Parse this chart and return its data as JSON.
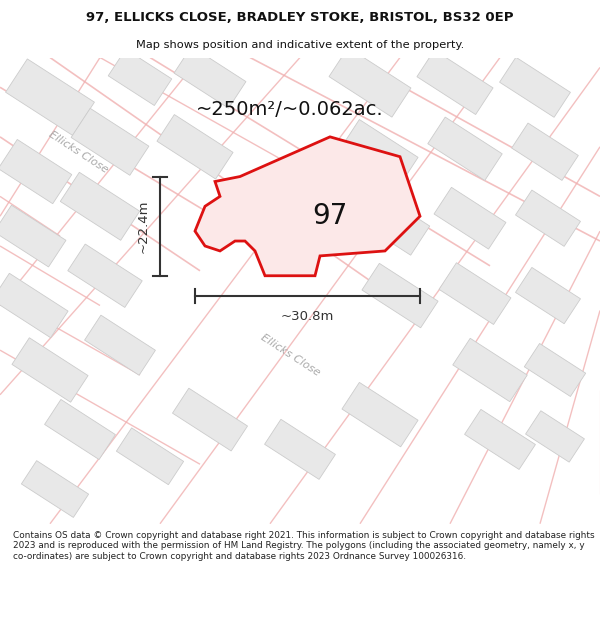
{
  "title_line1": "97, ELLICKS CLOSE, BRADLEY STOKE, BRISTOL, BS32 0EP",
  "title_line2": "Map shows position and indicative extent of the property.",
  "area_text": "~250m²/~0.062ac.",
  "label_97": "97",
  "dim_width": "~30.8m",
  "dim_height": "~22.4m",
  "road_label_topleft": "Ellicks Close",
  "road_label_bottom": "Ellicks Close",
  "footer": "Contains OS data © Crown copyright and database right 2021. This information is subject to Crown copyright and database rights 2023 and is reproduced with the permission of HM Land Registry. The polygons (including the associated geometry, namely x, y co-ordinates) are subject to Crown copyright and database rights 2023 Ordnance Survey 100026316.",
  "map_bg": "#ffffff",
  "plot_fill": "#fce8e8",
  "plot_stroke": "#dd1111",
  "building_fill": "#e8e8e8",
  "building_stroke": "#cccccc",
  "road_stroke": "#f0b0b0",
  "road_fill": "#f8d8d8",
  "dim_color": "#333333",
  "text_color": "#111111",
  "road_label_color": "#aaaaaa",
  "footer_color": "#222222",
  "title_bg": "#ffffff",
  "footer_bg": "#ffffff"
}
